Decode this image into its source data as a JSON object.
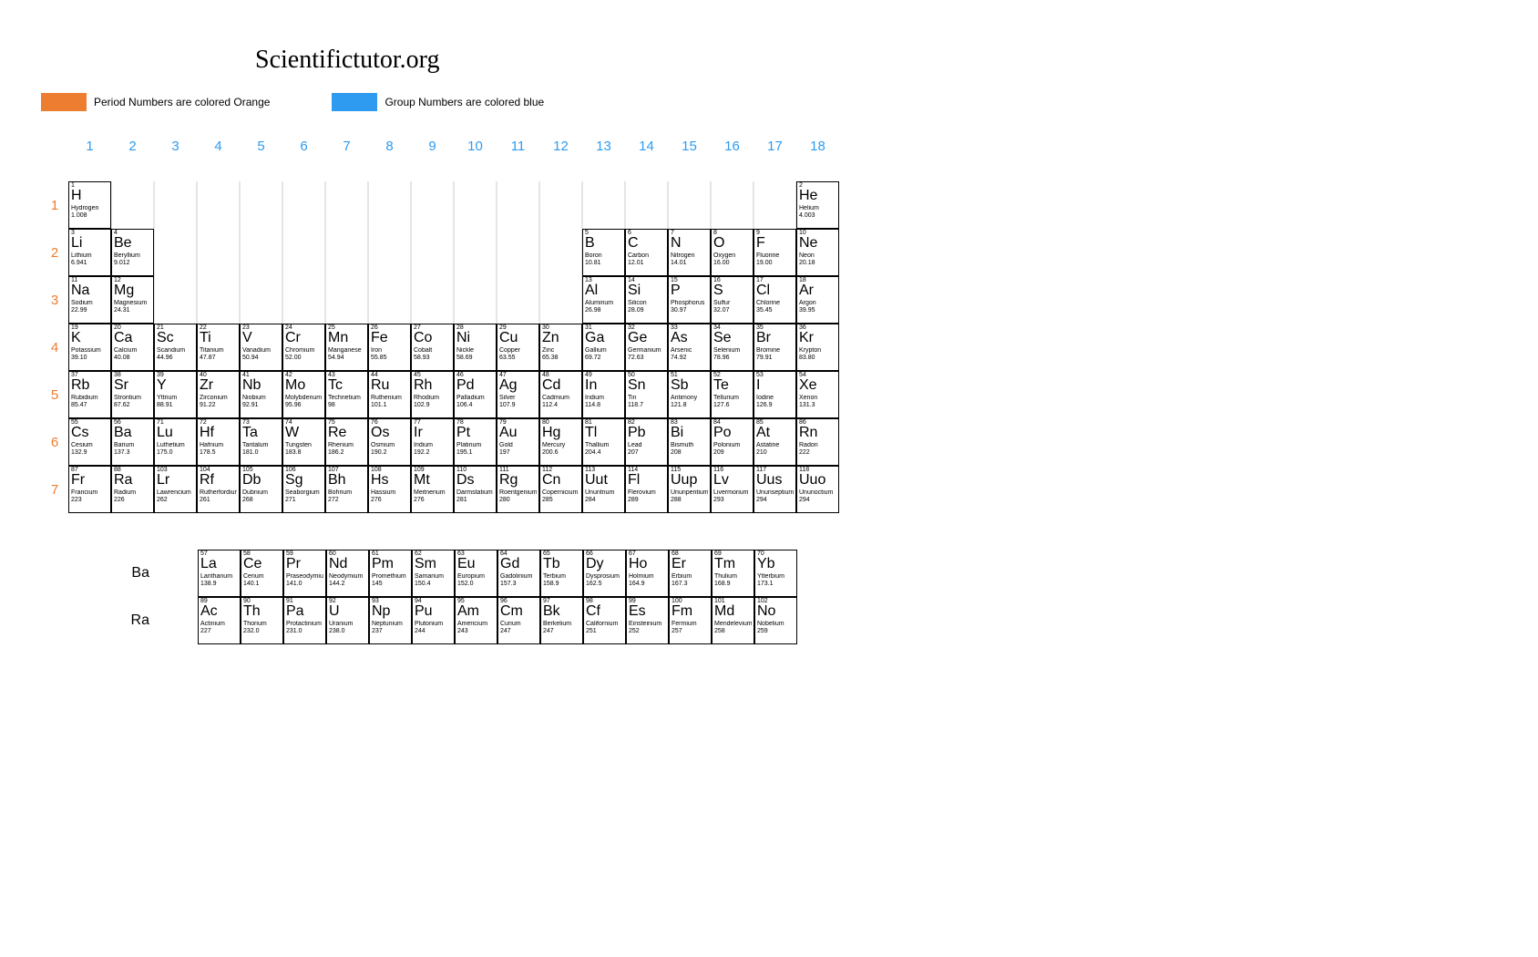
{
  "title": "Scientifictutor.org",
  "legend": {
    "orange_swatch": "#ed7d31",
    "orange_text": "Period Numbers are colored Orange",
    "blue_swatch": "#2e9bf0",
    "blue_text": "Group Numbers are colored blue"
  },
  "colors": {
    "group_number": "#2e9bf0",
    "period_number": "#ed7d31",
    "cell_border": "#000000",
    "blank_border": "#e5e5e5",
    "background": "#ffffff"
  },
  "groups": [
    "1",
    "2",
    "3",
    "4",
    "5",
    "6",
    "7",
    "8",
    "9",
    "10",
    "11",
    "12",
    "13",
    "14",
    "15",
    "16",
    "17",
    "18"
  ],
  "periods": [
    "1",
    "2",
    "3",
    "4",
    "5",
    "6",
    "7"
  ],
  "fblock_labels": [
    "Ba",
    "Ra"
  ],
  "elements": [
    {
      "z": "1",
      "sym": "H",
      "nm": "Hydrogen",
      "m": "1.008",
      "p": 1,
      "g": 1
    },
    {
      "z": "2",
      "sym": "He",
      "nm": "Helium",
      "m": "4.003",
      "p": 1,
      "g": 18
    },
    {
      "z": "3",
      "sym": "Li",
      "nm": "Lithium",
      "m": "6.941",
      "p": 2,
      "g": 1
    },
    {
      "z": "4",
      "sym": "Be",
      "nm": "Beryllium",
      "m": "9.012",
      "p": 2,
      "g": 2
    },
    {
      "z": "5",
      "sym": "B",
      "nm": "Boron",
      "m": "10.81",
      "p": 2,
      "g": 13
    },
    {
      "z": "6",
      "sym": "C",
      "nm": "Carbon",
      "m": "12.01",
      "p": 2,
      "g": 14
    },
    {
      "z": "7",
      "sym": "N",
      "nm": "Nitrogen",
      "m": "14.01",
      "p": 2,
      "g": 15
    },
    {
      "z": "8",
      "sym": "O",
      "nm": "Oxygen",
      "m": "16.00",
      "p": 2,
      "g": 16
    },
    {
      "z": "9",
      "sym": "F",
      "nm": "Fluorine",
      "m": "19.00",
      "p": 2,
      "g": 17
    },
    {
      "z": "10",
      "sym": "Ne",
      "nm": "Neon",
      "m": "20.18",
      "p": 2,
      "g": 18
    },
    {
      "z": "11",
      "sym": "Na",
      "nm": "Sodium",
      "m": "22.99",
      "p": 3,
      "g": 1
    },
    {
      "z": "12",
      "sym": "Mg",
      "nm": "Magnesium",
      "m": "24.31",
      "p": 3,
      "g": 2
    },
    {
      "z": "13",
      "sym": "Al",
      "nm": "Aluminum",
      "m": "26.98",
      "p": 3,
      "g": 13
    },
    {
      "z": "14",
      "sym": "Si",
      "nm": "Silicon",
      "m": "28.09",
      "p": 3,
      "g": 14
    },
    {
      "z": "15",
      "sym": "P",
      "nm": "Phosphorus",
      "m": "30.97",
      "p": 3,
      "g": 15
    },
    {
      "z": "16",
      "sym": "S",
      "nm": "Sulfur",
      "m": "32.07",
      "p": 3,
      "g": 16
    },
    {
      "z": "17",
      "sym": "Cl",
      "nm": "Chlorine",
      "m": "35.45",
      "p": 3,
      "g": 17
    },
    {
      "z": "18",
      "sym": "Ar",
      "nm": "Argon",
      "m": "39.95",
      "p": 3,
      "g": 18
    },
    {
      "z": "19",
      "sym": "K",
      "nm": "Potassium",
      "m": "39.10",
      "p": 4,
      "g": 1
    },
    {
      "z": "20",
      "sym": "Ca",
      "nm": "Calcium",
      "m": "40.08",
      "p": 4,
      "g": 2
    },
    {
      "z": "21",
      "sym": "Sc",
      "nm": "Scandium",
      "m": "44.96",
      "p": 4,
      "g": 3
    },
    {
      "z": "22",
      "sym": "Ti",
      "nm": "Titanium",
      "m": "47.87",
      "p": 4,
      "g": 4
    },
    {
      "z": "23",
      "sym": "V",
      "nm": "Vanadium",
      "m": "50.94",
      "p": 4,
      "g": 5
    },
    {
      "z": "24",
      "sym": "Cr",
      "nm": "Chromium",
      "m": "52.00",
      "p": 4,
      "g": 6
    },
    {
      "z": "25",
      "sym": "Mn",
      "nm": "Manganese",
      "m": "54.94",
      "p": 4,
      "g": 7
    },
    {
      "z": "26",
      "sym": "Fe",
      "nm": "Iron",
      "m": "55.85",
      "p": 4,
      "g": 8
    },
    {
      "z": "27",
      "sym": "Co",
      "nm": "Cobalt",
      "m": "58.93",
      "p": 4,
      "g": 9
    },
    {
      "z": "28",
      "sym": "Ni",
      "nm": "Nickle",
      "m": "58.69",
      "p": 4,
      "g": 10
    },
    {
      "z": "29",
      "sym": "Cu",
      "nm": "Copper",
      "m": "63.55",
      "p": 4,
      "g": 11
    },
    {
      "z": "30",
      "sym": "Zn",
      "nm": "Zinc",
      "m": "65.38",
      "p": 4,
      "g": 12
    },
    {
      "z": "31",
      "sym": "Ga",
      "nm": "Gallium",
      "m": "69.72",
      "p": 4,
      "g": 13
    },
    {
      "z": "32",
      "sym": "Ge",
      "nm": "Germanium",
      "m": "72.63",
      "p": 4,
      "g": 14
    },
    {
      "z": "33",
      "sym": "As",
      "nm": "Arsenic",
      "m": "74.92",
      "p": 4,
      "g": 15
    },
    {
      "z": "34",
      "sym": "Se",
      "nm": "Selenium",
      "m": "78.96",
      "p": 4,
      "g": 16
    },
    {
      "z": "35",
      "sym": "Br",
      "nm": "Bromine",
      "m": "79.91",
      "p": 4,
      "g": 17
    },
    {
      "z": "36",
      "sym": "Kr",
      "nm": "Krypton",
      "m": "83.80",
      "p": 4,
      "g": 18
    },
    {
      "z": "37",
      "sym": "Rb",
      "nm": "Rubidium",
      "m": "85.47",
      "p": 5,
      "g": 1
    },
    {
      "z": "38",
      "sym": "Sr",
      "nm": "Strontium",
      "m": "87.62",
      "p": 5,
      "g": 2
    },
    {
      "z": "39",
      "sym": "Y",
      "nm": "Yttrium",
      "m": "88.91",
      "p": 5,
      "g": 3
    },
    {
      "z": "40",
      "sym": "Zr",
      "nm": "Zirconium",
      "m": "91.22",
      "p": 5,
      "g": 4
    },
    {
      "z": "41",
      "sym": "Nb",
      "nm": "Niobium",
      "m": "92.91",
      "p": 5,
      "g": 5
    },
    {
      "z": "42",
      "sym": "Mo",
      "nm": "Molybdenum",
      "m": "95.96",
      "p": 5,
      "g": 6
    },
    {
      "z": "43",
      "sym": "Tc",
      "nm": "Technetium",
      "m": "98",
      "p": 5,
      "g": 7
    },
    {
      "z": "44",
      "sym": "Ru",
      "nm": "Ruthenium",
      "m": "101.1",
      "p": 5,
      "g": 8
    },
    {
      "z": "45",
      "sym": "Rh",
      "nm": "Rhodium",
      "m": "102.9",
      "p": 5,
      "g": 9
    },
    {
      "z": "46",
      "sym": "Pd",
      "nm": "Palladium",
      "m": "106.4",
      "p": 5,
      "g": 10
    },
    {
      "z": "47",
      "sym": "Ag",
      "nm": "Silver",
      "m": "107.9",
      "p": 5,
      "g": 11
    },
    {
      "z": "48",
      "sym": "Cd",
      "nm": "Cadmium",
      "m": "112.4",
      "p": 5,
      "g": 12
    },
    {
      "z": "49",
      "sym": "In",
      "nm": "Indium",
      "m": "114.8",
      "p": 5,
      "g": 13
    },
    {
      "z": "50",
      "sym": "Sn",
      "nm": "Tin",
      "m": "118.7",
      "p": 5,
      "g": 14
    },
    {
      "z": "51",
      "sym": "Sb",
      "nm": "Antimony",
      "m": "121.8",
      "p": 5,
      "g": 15
    },
    {
      "z": "52",
      "sym": "Te",
      "nm": "Tellurium",
      "m": "127.6",
      "p": 5,
      "g": 16
    },
    {
      "z": "53",
      "sym": "I",
      "nm": "Iodine",
      "m": "126.9",
      "p": 5,
      "g": 17
    },
    {
      "z": "54",
      "sym": "Xe",
      "nm": "Xenon",
      "m": "131.3",
      "p": 5,
      "g": 18
    },
    {
      "z": "55",
      "sym": "Cs",
      "nm": "Cesium",
      "m": "132.9",
      "p": 6,
      "g": 1
    },
    {
      "z": "56",
      "sym": "Ba",
      "nm": "Barium",
      "m": "137.3",
      "p": 6,
      "g": 2
    },
    {
      "z": "71",
      "sym": "Lu",
      "nm": "Luthetium",
      "m": "175.0",
      "p": 6,
      "g": 3
    },
    {
      "z": "72",
      "sym": "Hf",
      "nm": "Hafnium",
      "m": "178.5",
      "p": 6,
      "g": 4
    },
    {
      "z": "73",
      "sym": "Ta",
      "nm": "Tantalum",
      "m": "181.0",
      "p": 6,
      "g": 5
    },
    {
      "z": "74",
      "sym": "W",
      "nm": "Tungsten",
      "m": "183.8",
      "p": 6,
      "g": 6
    },
    {
      "z": "75",
      "sym": "Re",
      "nm": "Rhenium",
      "m": "186.2",
      "p": 6,
      "g": 7
    },
    {
      "z": "76",
      "sym": "Os",
      "nm": "Osmium",
      "m": "190.2",
      "p": 6,
      "g": 8
    },
    {
      "z": "77",
      "sym": "Ir",
      "nm": "Iridium",
      "m": "192.2",
      "p": 6,
      "g": 9
    },
    {
      "z": "78",
      "sym": "Pt",
      "nm": "Platinum",
      "m": "195.1",
      "p": 6,
      "g": 10
    },
    {
      "z": "79",
      "sym": "Au",
      "nm": "Gold",
      "m": "197",
      "p": 6,
      "g": 11
    },
    {
      "z": "80",
      "sym": "Hg",
      "nm": "Mercury",
      "m": "200.6",
      "p": 6,
      "g": 12
    },
    {
      "z": "81",
      "sym": "Tl",
      "nm": "Thallium",
      "m": "204.4",
      "p": 6,
      "g": 13
    },
    {
      "z": "82",
      "sym": "Pb",
      "nm": "Lead",
      "m": "207",
      "p": 6,
      "g": 14
    },
    {
      "z": "83",
      "sym": "Bi",
      "nm": "Bismuth",
      "m": "208",
      "p": 6,
      "g": 15
    },
    {
      "z": "84",
      "sym": "Po",
      "nm": "Polonium",
      "m": "209",
      "p": 6,
      "g": 16
    },
    {
      "z": "85",
      "sym": "At",
      "nm": "Astatine",
      "m": "210",
      "p": 6,
      "g": 17
    },
    {
      "z": "86",
      "sym": "Rn",
      "nm": "Radon",
      "m": "222",
      "p": 6,
      "g": 18
    },
    {
      "z": "87",
      "sym": "Fr",
      "nm": "Francium",
      "m": "223",
      "p": 7,
      "g": 1
    },
    {
      "z": "88",
      "sym": "Ra",
      "nm": "Radium",
      "m": "226",
      "p": 7,
      "g": 2
    },
    {
      "z": "103",
      "sym": "Lr",
      "nm": "Lawrencium",
      "m": "262",
      "p": 7,
      "g": 3
    },
    {
      "z": "104",
      "sym": "Rf",
      "nm": "Rutherfordium",
      "m": "261",
      "p": 7,
      "g": 4
    },
    {
      "z": "105",
      "sym": "Db",
      "nm": "Dubnium",
      "m": "268",
      "p": 7,
      "g": 5
    },
    {
      "z": "106",
      "sym": "Sg",
      "nm": "Seaborgium",
      "m": "271",
      "p": 7,
      "g": 6
    },
    {
      "z": "107",
      "sym": "Bh",
      "nm": "Bohrium",
      "m": "272",
      "p": 7,
      "g": 7
    },
    {
      "z": "108",
      "sym": "Hs",
      "nm": "Hassium",
      "m": "276",
      "p": 7,
      "g": 8
    },
    {
      "z": "109",
      "sym": "Mt",
      "nm": "Meitnerium",
      "m": "276",
      "p": 7,
      "g": 9
    },
    {
      "z": "110",
      "sym": "Ds",
      "nm": "Darmstatium",
      "m": "281",
      "p": 7,
      "g": 10
    },
    {
      "z": "111",
      "sym": "Rg",
      "nm": "Roentgenium",
      "m": "280",
      "p": 7,
      "g": 11
    },
    {
      "z": "112",
      "sym": "Cn",
      "nm": "Copernicium",
      "m": "285",
      "p": 7,
      "g": 12
    },
    {
      "z": "113",
      "sym": "Uut",
      "nm": "Ununtrium",
      "m": "284",
      "p": 7,
      "g": 13
    },
    {
      "z": "114",
      "sym": "Fl",
      "nm": "Flerovium",
      "m": "289",
      "p": 7,
      "g": 14
    },
    {
      "z": "115",
      "sym": "Uup",
      "nm": "Ununpentium",
      "m": "288",
      "p": 7,
      "g": 15
    },
    {
      "z": "116",
      "sym": "Lv",
      "nm": "Livermorium",
      "m": "293",
      "p": 7,
      "g": 16
    },
    {
      "z": "117",
      "sym": "Uus",
      "nm": "Ununseptium",
      "m": "294",
      "p": 7,
      "g": 17
    },
    {
      "z": "118",
      "sym": "Uuo",
      "nm": "Ununoctium",
      "m": "294",
      "p": 7,
      "g": 18
    }
  ],
  "fblock": [
    [
      {
        "z": "57",
        "sym": "La",
        "nm": "Lanthanum",
        "m": "138.9"
      },
      {
        "z": "58",
        "sym": "Ce",
        "nm": "Cerium",
        "m": "140.1"
      },
      {
        "z": "59",
        "sym": "Pr",
        "nm": "Praseodymium",
        "m": "141.0"
      },
      {
        "z": "60",
        "sym": "Nd",
        "nm": "Neodymium",
        "m": "144.2"
      },
      {
        "z": "61",
        "sym": "Pm",
        "nm": "Promethium",
        "m": "145"
      },
      {
        "z": "62",
        "sym": "Sm",
        "nm": "Samarium",
        "m": "150.4"
      },
      {
        "z": "63",
        "sym": "Eu",
        "nm": "Europium",
        "m": "152.0"
      },
      {
        "z": "64",
        "sym": "Gd",
        "nm": "Gadolinium",
        "m": "157.3"
      },
      {
        "z": "65",
        "sym": "Tb",
        "nm": "Terbium",
        "m": "158.9"
      },
      {
        "z": "66",
        "sym": "Dy",
        "nm": "Dysprosium",
        "m": "162.5"
      },
      {
        "z": "67",
        "sym": "Ho",
        "nm": "Holmium",
        "m": "164.9"
      },
      {
        "z": "68",
        "sym": "Er",
        "nm": "Erbium",
        "m": "167.3"
      },
      {
        "z": "69",
        "sym": "Tm",
        "nm": "Thulium",
        "m": "168.9"
      },
      {
        "z": "70",
        "sym": "Yb",
        "nm": "Ytterbium",
        "m": "173.1"
      }
    ],
    [
      {
        "z": "89",
        "sym": "Ac",
        "nm": "Actinium",
        "m": "227"
      },
      {
        "z": "90",
        "sym": "Th",
        "nm": "Thorium",
        "m": "232.0"
      },
      {
        "z": "91",
        "sym": "Pa",
        "nm": "Protactinium",
        "m": "231.0"
      },
      {
        "z": "92",
        "sym": "U",
        "nm": "Uranium",
        "m": "238.0"
      },
      {
        "z": "93",
        "sym": "Np",
        "nm": "Neptunium",
        "m": "237"
      },
      {
        "z": "94",
        "sym": "Pu",
        "nm": "Plutonium",
        "m": "244"
      },
      {
        "z": "95",
        "sym": "Am",
        "nm": "Americium",
        "m": "243"
      },
      {
        "z": "96",
        "sym": "Cm",
        "nm": "Curium",
        "m": "247"
      },
      {
        "z": "97",
        "sym": "Bk",
        "nm": "Berkelium",
        "m": "247"
      },
      {
        "z": "98",
        "sym": "Cf",
        "nm": "Californium",
        "m": "251"
      },
      {
        "z": "99",
        "sym": "Es",
        "nm": "Einsteinium",
        "m": "252"
      },
      {
        "z": "100",
        "sym": "Fm",
        "nm": "Fermium",
        "m": "257"
      },
      {
        "z": "101",
        "sym": "Md",
        "nm": "Mendelevium",
        "m": "258"
      },
      {
        "z": "102",
        "sym": "No",
        "nm": "Nobelium",
        "m": "259"
      }
    ]
  ]
}
